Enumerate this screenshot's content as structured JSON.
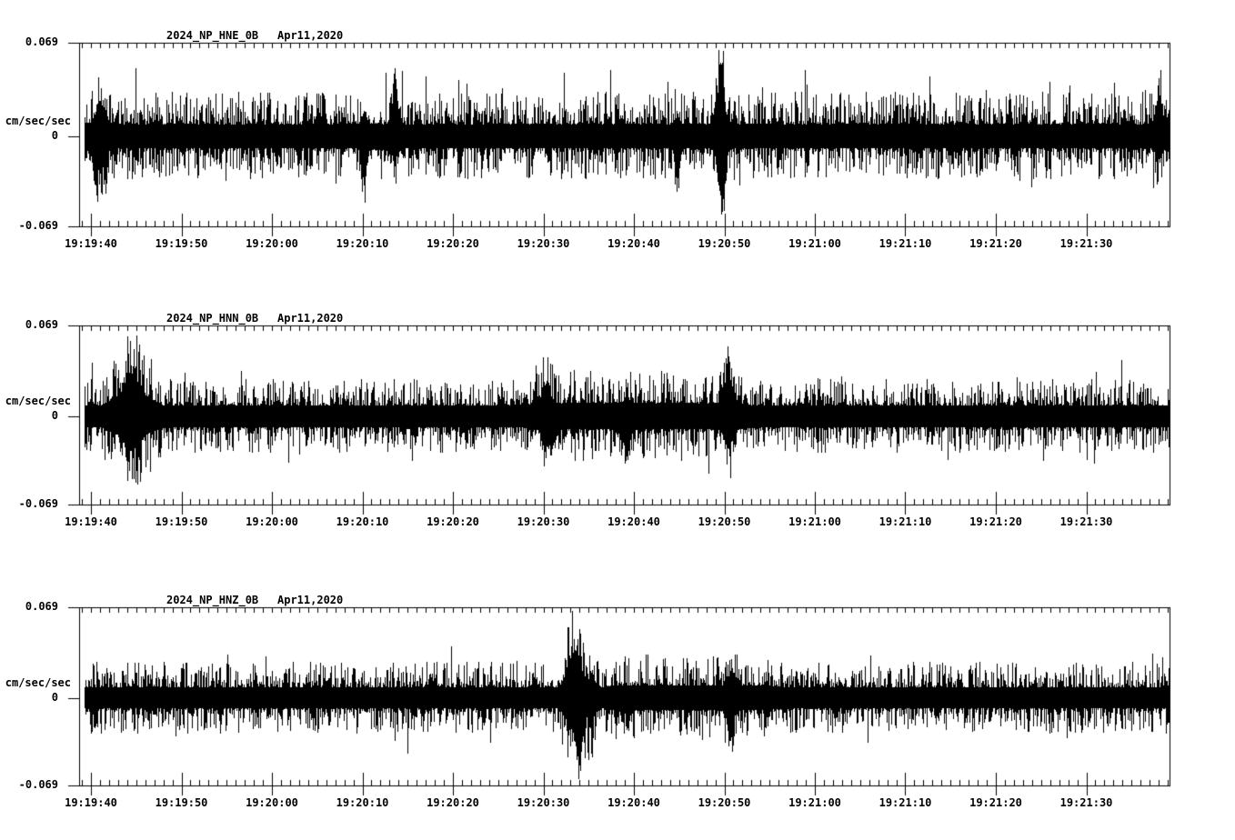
{
  "page": {
    "background_color": "#ffffff",
    "ink_color": "#000000",
    "description": "Three-channel strong-motion seismogram strip chart"
  },
  "chart_data": [
    {
      "type": "line",
      "title": "2024_NP_HNE_0B",
      "date_label": "Apr11,2020",
      "ylabel": "cm/sec/sec",
      "ytick_labels": [
        "0.069",
        "0",
        "-0.069"
      ],
      "ylim": [
        -0.069,
        0.069
      ],
      "xtick_labels": [
        "19:19:40",
        "19:19:50",
        "19:20:00",
        "19:20:10",
        "19:20:20",
        "19:20:30",
        "19:20:40",
        "19:20:50",
        "19:21:00",
        "19:21:10",
        "19:21:20",
        "19:21:30"
      ],
      "x_window": {
        "start": "19:19:38.7",
        "end": "19:21:39.2",
        "major_tick_sec": 10,
        "minor_tick_sec": 1
      },
      "grid": false,
      "legend": "none",
      "line_color": "#000000",
      "noise": {
        "seed": 20240411,
        "base_amp": 0.009,
        "var_amp": 0.024,
        "var_exp": 2.4,
        "spike_prob": 0.032,
        "spike_extra": 0.013
      },
      "bursts": [
        {
          "t0_sec": 68.3,
          "t1_sec": 71.2,
          "factor": 1.35
        }
      ],
      "spikes": [
        {
          "time": "19:20:49.6",
          "t_sec": 69.6,
          "up": 0.05,
          "down": 0.048,
          "width_sec": 0.3
        },
        {
          "time": "19:20:44.8",
          "t_sec": 64.8,
          "up": 0.005,
          "down": 0.032,
          "width_sec": 0.25
        },
        {
          "time": "19:20:13.5",
          "t_sec": 33.5,
          "up": 0.03,
          "down": 0.012,
          "width_sec": 0.3
        },
        {
          "time": "19:20:10.2",
          "t_sec": 30.2,
          "up": 0.01,
          "down": 0.03,
          "width_sec": 0.25
        },
        {
          "time": "19:19:41.0",
          "t_sec": 1.0,
          "up": 0.018,
          "down": 0.025,
          "width_sec": 0.5
        },
        {
          "time": "19:21:38.0",
          "t_sec": 118.0,
          "up": 0.025,
          "down": 0.012,
          "width_sec": 0.3
        }
      ]
    },
    {
      "type": "line",
      "title": "2024_NP_HNN_0B",
      "date_label": "Apr11,2020",
      "ylabel": "cm/sec/sec",
      "ytick_labels": [
        "0.069",
        "0",
        "-0.069"
      ],
      "ylim": [
        -0.069,
        0.069
      ],
      "xtick_labels": [
        "19:19:40",
        "19:19:50",
        "19:20:00",
        "19:20:10",
        "19:20:20",
        "19:20:30",
        "19:20:40",
        "19:20:50",
        "19:21:00",
        "19:21:10",
        "19:21:20",
        "19:21:30"
      ],
      "x_window": {
        "start": "19:19:38.7",
        "end": "19:21:39.2",
        "major_tick_sec": 10,
        "minor_tick_sec": 1
      },
      "grid": false,
      "legend": "none",
      "line_color": "#000000",
      "noise": {
        "seed": 411,
        "base_amp": 0.0082,
        "var_amp": 0.0205,
        "var_exp": 2.5,
        "spike_prob": 0.028,
        "spike_extra": 0.011
      },
      "bursts": [
        {
          "t0_sec": 1.0,
          "t1_sec": 8.0,
          "factor": 1.5
        },
        {
          "t0_sec": 48.0,
          "t1_sec": 73.0,
          "factor": 1.22
        }
      ],
      "spikes": [
        {
          "time": "19:19:44.5",
          "t_sec": 4.5,
          "up": 0.03,
          "down": 0.022,
          "width_sec": 0.8
        },
        {
          "time": "19:20:30.3",
          "t_sec": 50.3,
          "up": 0.022,
          "down": 0.018,
          "width_sec": 0.4
        },
        {
          "time": "19:20:50.4",
          "t_sec": 70.4,
          "up": 0.028,
          "down": 0.02,
          "width_sec": 0.4
        },
        {
          "time": "19:20:39.2",
          "t_sec": 59.2,
          "up": 0.006,
          "down": 0.024,
          "width_sec": 0.3
        }
      ]
    },
    {
      "type": "line",
      "title": "2024_NP_HNZ_0B",
      "date_label": "Apr11,2020",
      "ylabel": "cm/sec/sec",
      "ytick_labels": [
        "0.069",
        "0",
        "-0.069"
      ],
      "ylim": [
        -0.069,
        0.069
      ],
      "xtick_labels": [
        "19:19:40",
        "19:19:50",
        "19:20:00",
        "19:20:10",
        "19:20:20",
        "19:20:30",
        "19:20:40",
        "19:20:50",
        "19:21:00",
        "19:21:10",
        "19:21:20",
        "19:21:30"
      ],
      "x_window": {
        "start": "19:19:38.7",
        "end": "19:21:39.2",
        "major_tick_sec": 10,
        "minor_tick_sec": 1
      },
      "grid": false,
      "legend": "none",
      "line_color": "#000000",
      "noise": {
        "seed": 1104,
        "base_amp": 0.008,
        "var_amp": 0.02,
        "var_exp": 2.5,
        "spike_prob": 0.028,
        "spike_extra": 0.011
      },
      "bursts": [
        {
          "t0_sec": 51.5,
          "t1_sec": 56.5,
          "factor": 1.75
        },
        {
          "t0_sec": 56.5,
          "t1_sec": 76.0,
          "factor": 1.18
        }
      ],
      "spikes": [
        {
          "time": "19:20:33.3",
          "t_sec": 53.3,
          "up": 0.03,
          "down": 0.016,
          "width_sec": 0.5
        },
        {
          "time": "19:20:34.0",
          "t_sec": 54.0,
          "up": 0.01,
          "down": 0.038,
          "width_sec": 0.3
        },
        {
          "time": "19:20:50.6",
          "t_sec": 70.6,
          "up": 0.012,
          "down": 0.024,
          "width_sec": 0.35
        }
      ]
    }
  ]
}
